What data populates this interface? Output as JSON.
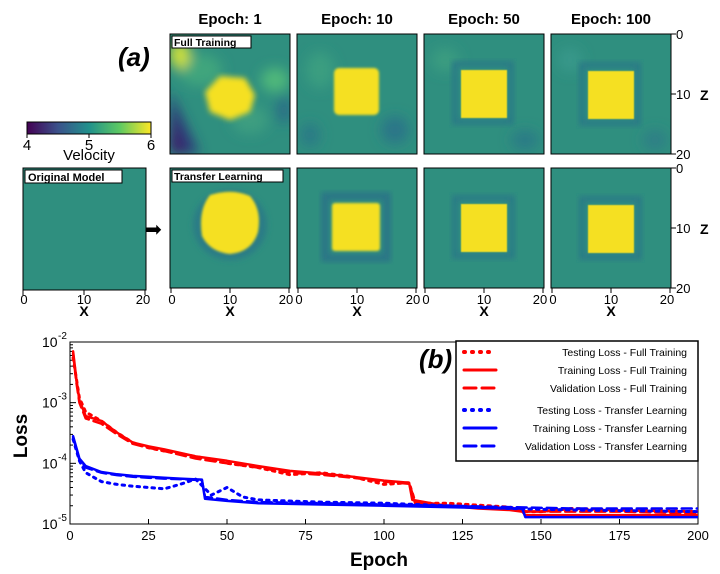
{
  "panel_a": {
    "label": "(a)",
    "epoch_titles": [
      "Epoch: 1",
      "Epoch: 10",
      "Epoch: 50",
      "Epoch: 100"
    ],
    "row_labels": [
      "Full Training",
      "Transfer Learning"
    ],
    "original_model_label": "Original Model",
    "colorbar": {
      "title": "Velocity",
      "ticks": [
        "4",
        "5",
        "6"
      ],
      "range": [
        4,
        6
      ]
    },
    "x_ticks": [
      "0",
      "10",
      "20"
    ],
    "x_label": "X",
    "z_ticks_top": [
      "0",
      "10",
      "20"
    ],
    "z_ticks_bottom": [
      "0",
      "10",
      "20"
    ],
    "z_label": "Z",
    "arrow_symbol": "➡",
    "colors": {
      "background": "#2f8f7f",
      "anomaly": "#f5e022",
      "low": "#3b1f6b"
    }
  },
  "panel_b": {
    "label": "(b)",
    "ylabel": "Loss",
    "xlabel": "Epoch",
    "x_ticks": [
      "0",
      "25",
      "50",
      "75",
      "100",
      "125",
      "150",
      "175",
      "200"
    ],
    "y_ticks": [
      {
        "base": "10",
        "exp": "-2"
      },
      {
        "base": "10",
        "exp": "-3"
      },
      {
        "base": "10",
        "exp": "-4"
      },
      {
        "base": "10",
        "exp": "-5"
      }
    ],
    "legend": [
      {
        "label": "Testing Loss - Full Training",
        "color": "#ff0000",
        "style": "dotted"
      },
      {
        "label": "Training Loss - Full Training",
        "color": "#ff0000",
        "style": "solid"
      },
      {
        "label": "Validation Loss - Full Training",
        "color": "#ff0000",
        "style": "dashed"
      },
      {
        "label": "Testing Loss - Transfer Learning",
        "color": "#0000ff",
        "style": "dotted"
      },
      {
        "label": "Training Loss - Transfer Learning",
        "color": "#0000ff",
        "style": "solid"
      },
      {
        "label": "Validation Loss - Transfer Learning",
        "color": "#0000ff",
        "style": "dashed"
      }
    ]
  },
  "chart_data": {
    "type": "line",
    "title": "",
    "xlabel": "Epoch",
    "ylabel": "Loss",
    "xlim": [
      0,
      200
    ],
    "ylim": [
      1e-05,
      0.01
    ],
    "yscale": "log",
    "series": [
      {
        "name": "Testing Loss - Full Training",
        "color": "#ff0000",
        "style": "dotted",
        "x": [
          1,
          3,
          5,
          10,
          15,
          20,
          25,
          30,
          40,
          50,
          60,
          70,
          80,
          90,
          100,
          108,
          110,
          120,
          140,
          145,
          150,
          160,
          175,
          200
        ],
        "y": [
          0.0055,
          0.0012,
          0.0007,
          0.0005,
          0.00032,
          0.00022,
          0.00018,
          0.00016,
          0.00013,
          0.0001,
          8.5e-05,
          6.5e-05,
          7e-05,
          6e-05,
          4.5e-05,
          4.8e-05,
          2.2e-05,
          2.2e-05,
          1.9e-05,
          1.6e-05,
          1.6e-05,
          1.8e-05,
          1.7e-05,
          1.6e-05
        ]
      },
      {
        "name": "Training Loss - Full Training",
        "color": "#ff0000",
        "style": "solid",
        "x": [
          1,
          2,
          3,
          5,
          10,
          15,
          20,
          25,
          30,
          40,
          50,
          60,
          70,
          80,
          90,
          100,
          108,
          109,
          115,
          120,
          130,
          140,
          144,
          145,
          160,
          175,
          200
        ],
        "y": [
          0.007,
          0.0025,
          0.0011,
          0.0006,
          0.0005,
          0.00032,
          0.00022,
          0.00019,
          0.00017,
          0.00013,
          0.00011,
          9e-05,
          7.5e-05,
          6.8e-05,
          6e-05,
          5.2e-05,
          4.8e-05,
          2.5e-05,
          2.2e-05,
          2e-05,
          1.8e-05,
          1.7e-05,
          1.6e-05,
          1.4e-05,
          1.4e-05,
          1.4e-05,
          1.4e-05
        ]
      },
      {
        "name": "Validation Loss - Full Training",
        "color": "#ff0000",
        "style": "dashed",
        "x": [
          1,
          2,
          3,
          5,
          10,
          15,
          20,
          25,
          30,
          40,
          50,
          60,
          70,
          80,
          90,
          100,
          108,
          110,
          120,
          140,
          145,
          160,
          175,
          200
        ],
        "y": [
          0.0065,
          0.0022,
          0.001,
          0.00055,
          0.00045,
          0.0003,
          0.00021,
          0.00018,
          0.00016,
          0.00012,
          0.0001,
          8.5e-05,
          7e-05,
          6.5e-05,
          5.8e-05,
          5e-05,
          4.6e-05,
          2.3e-05,
          2e-05,
          1.8e-05,
          1.6e-05,
          1.6e-05,
          1.6e-05,
          1.5e-05
        ]
      },
      {
        "name": "Testing Loss - Transfer Learning",
        "color": "#0000ff",
        "style": "dotted",
        "x": [
          1,
          3,
          5,
          10,
          15,
          20,
          25,
          30,
          35,
          40,
          45,
          50,
          55,
          60,
          80,
          100,
          120,
          140,
          160,
          200
        ],
        "y": [
          0.00025,
          0.00011,
          7e-05,
          5e-05,
          4.5e-05,
          4.2e-05,
          4e-05,
          3.8e-05,
          4.5e-05,
          5.5e-05,
          3e-05,
          4e-05,
          2.8e-05,
          2.5e-05,
          2.3e-05,
          2.2e-05,
          2e-05,
          1.8e-05,
          1.7e-05,
          1.6e-05
        ]
      },
      {
        "name": "Training Loss - Transfer Learning",
        "color": "#0000ff",
        "style": "solid",
        "x": [
          1,
          3,
          5,
          10,
          15,
          20,
          25,
          30,
          35,
          42,
          43,
          50,
          60,
          80,
          100,
          120,
          140,
          144,
          145,
          160,
          200
        ],
        "y": [
          0.00028,
          0.00012,
          9e-05,
          7.2e-05,
          6.6e-05,
          6.2e-05,
          6e-05,
          5.8e-05,
          5.6e-05,
          5.4e-05,
          2.6e-05,
          2.4e-05,
          2.2e-05,
          2.1e-05,
          2e-05,
          1.9e-05,
          1.8e-05,
          1.8e-05,
          1.3e-05,
          1.3e-05,
          1.3e-05
        ]
      },
      {
        "name": "Validation Loss - Transfer Learning",
        "color": "#0000ff",
        "style": "dashed",
        "x": [
          1,
          3,
          5,
          10,
          15,
          20,
          25,
          30,
          35,
          42,
          43,
          50,
          60,
          80,
          100,
          120,
          140,
          160,
          200
        ],
        "y": [
          0.00027,
          0.000115,
          8.5e-05,
          7e-05,
          6.4e-05,
          6e-05,
          5.8e-05,
          5.6e-05,
          5.5e-05,
          5.3e-05,
          2.8e-05,
          2.5e-05,
          2.3e-05,
          2.2e-05,
          2.1e-05,
          2e-05,
          1.9e-05,
          1.8e-05,
          1.8e-05
        ]
      }
    ]
  }
}
